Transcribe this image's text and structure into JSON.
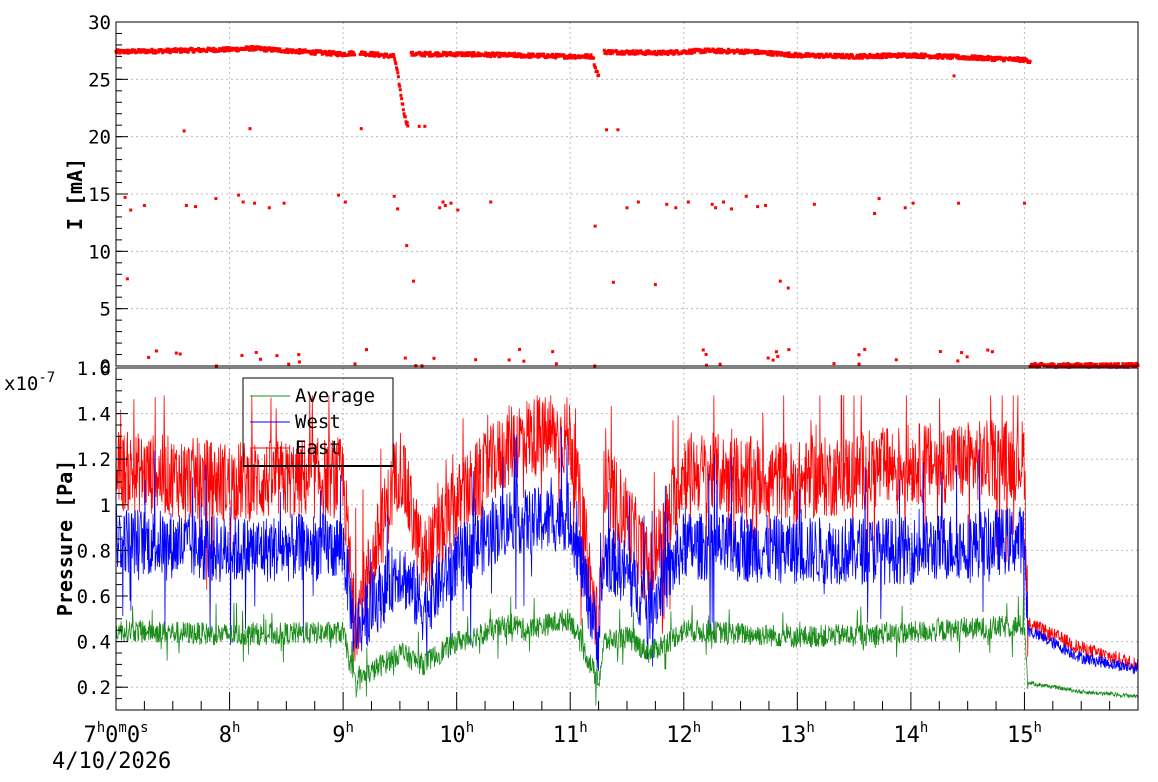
{
  "chart_data": [
    {
      "type": "scatter",
      "ylabel": "I [mA]",
      "ylim": [
        0,
        30
      ],
      "yticks": [
        0,
        5,
        10,
        15,
        20,
        25,
        30
      ],
      "xlim": [
        7.0,
        16.0
      ],
      "grid": true,
      "series": [
        {
          "color": "#ff0000",
          "segments": [
            {
              "x": [
                7.0,
                7.5,
                8.0,
                8.2,
                8.5,
                9.0,
                9.1
              ],
              "y": [
                27.4,
                27.5,
                27.6,
                27.7,
                27.5,
                27.2,
                27.3
              ]
            },
            {
              "x": [
                9.15,
                9.45,
                9.48,
                9.52,
                9.55,
                9.57
              ],
              "y": [
                27.3,
                27.0,
                25.5,
                23.0,
                21.5,
                21.0
              ]
            },
            {
              "x": [
                9.6,
                10.0,
                10.5,
                11.0,
                11.2,
                11.22,
                11.25
              ],
              "y": [
                27.2,
                27.2,
                27.1,
                27.0,
                27.0,
                26.0,
                25.3
              ]
            },
            {
              "x": [
                11.3,
                11.8,
                12.2,
                12.6,
                13.0,
                13.5,
                14.0,
                14.5,
                15.0,
                15.05
              ],
              "y": [
                27.4,
                27.3,
                27.5,
                27.4,
                27.1,
                27.0,
                27.1,
                26.9,
                26.7,
                26.6
              ]
            },
            {
              "x": [
                15.05,
                15.5,
                16.0
              ],
              "y": [
                0.05,
                0.05,
                0.05
              ]
            }
          ],
          "outliers": {
            "x": [
              7.08,
              7.1,
              7.13,
              7.25,
              7.6,
              7.62,
              7.7,
              7.88,
              8.08,
              8.12,
              8.18,
              8.22,
              8.35,
              8.48,
              8.96,
              9.02,
              9.16,
              9.45,
              9.48,
              9.56,
              9.62,
              9.67,
              9.72,
              9.85,
              9.88,
              9.9,
              9.95,
              10.01,
              10.3,
              11.22,
              11.32,
              11.38,
              11.42,
              11.5,
              11.6,
              11.75,
              11.85,
              11.93,
              12.04,
              12.25,
              12.28,
              12.35,
              12.42,
              12.55,
              12.65,
              12.72,
              12.85,
              12.92,
              13.15,
              13.68,
              13.72,
              13.95,
              14.02,
              14.38,
              14.42,
              15.0
            ],
            "y": [
              14.7,
              7.6,
              13.6,
              14.0,
              20.5,
              14.0,
              13.9,
              14.6,
              14.9,
              14.3,
              20.7,
              14.2,
              13.8,
              14.2,
              14.9,
              14.3,
              20.7,
              14.8,
              13.7,
              10.5,
              7.4,
              20.9,
              20.9,
              13.8,
              14.3,
              14.0,
              14.2,
              13.6,
              14.3,
              12.2,
              20.6,
              7.3,
              20.6,
              13.8,
              14.3,
              7.1,
              14.1,
              13.8,
              14.3,
              14.1,
              13.8,
              14.3,
              13.7,
              14.8,
              13.9,
              14.0,
              7.4,
              6.8,
              14.1,
              13.3,
              14.6,
              13.8,
              14.2,
              25.3,
              14.2,
              14.2
            ]
          }
        }
      ]
    },
    {
      "type": "line",
      "ylabel": "Pressure [Pa]",
      "multiplier": "x10-7",
      "ylim": [
        0.1,
        1.6
      ],
      "yticks": [
        0.2,
        0.4,
        0.6,
        0.8,
        1,
        1.2,
        1.4,
        1.6
      ],
      "ytick_labels": [
        "0.2",
        "0.4",
        "0.6",
        "0.8",
        "1",
        "1.2",
        "1.4",
        "1.6"
      ],
      "xlim": [
        7.0,
        16.0
      ],
      "xticks": [
        7,
        8,
        9,
        10,
        11,
        12,
        13,
        14,
        15
      ],
      "x_tick_hours": [
        "7",
        "8",
        "9",
        "10",
        "11",
        "12",
        "13",
        "14",
        "15"
      ],
      "x_first_extra": [
        "0",
        "m",
        "0",
        "s"
      ],
      "date_label": "4/10/2026",
      "grid": true,
      "legend": {
        "placement": "top-left"
      },
      "series": [
        {
          "name": "Average",
          "color": "#1a8c1a",
          "x": [
            7.0,
            8.0,
            9.0,
            9.1,
            9.5,
            9.7,
            10.0,
            10.5,
            10.6,
            11.0,
            11.25,
            11.3,
            11.5,
            11.7,
            12.0,
            13.0,
            14.0,
            15.0,
            15.03,
            15.5,
            16.0
          ],
          "y": [
            0.45,
            0.43,
            0.44,
            0.22,
            0.35,
            0.3,
            0.4,
            0.48,
            0.45,
            0.5,
            0.22,
            0.4,
            0.42,
            0.35,
            0.45,
            0.42,
            0.44,
            0.47,
            0.22,
            0.18,
            0.16
          ],
          "noise": 0.05
        },
        {
          "name": "West",
          "color": "#0000ff",
          "x": [
            7.0,
            8.0,
            9.0,
            9.1,
            9.5,
            9.7,
            10.0,
            10.5,
            10.6,
            11.0,
            11.25,
            11.3,
            11.5,
            11.7,
            12.0,
            13.0,
            14.0,
            15.0,
            15.03,
            15.5,
            16.0
          ],
          "y": [
            0.85,
            0.8,
            0.82,
            0.45,
            0.72,
            0.55,
            0.75,
            0.95,
            0.92,
            0.95,
            0.4,
            0.78,
            0.7,
            0.55,
            0.82,
            0.8,
            0.8,
            0.85,
            0.45,
            0.33,
            0.28
          ],
          "noise": 0.15
        },
        {
          "name": "East",
          "color": "#ff0000",
          "x": [
            7.0,
            8.0,
            9.0,
            9.1,
            9.5,
            9.7,
            10.0,
            10.5,
            10.6,
            11.0,
            11.25,
            11.3,
            11.5,
            11.7,
            12.0,
            13.0,
            14.0,
            15.0,
            15.03,
            15.5,
            16.0
          ],
          "y": [
            1.15,
            1.1,
            1.12,
            0.48,
            1.18,
            0.75,
            1.0,
            1.28,
            1.3,
            1.3,
            0.42,
            1.1,
            0.95,
            0.7,
            1.15,
            1.1,
            1.18,
            1.2,
            0.48,
            0.37,
            0.3
          ],
          "noise": 0.18
        }
      ]
    }
  ]
}
